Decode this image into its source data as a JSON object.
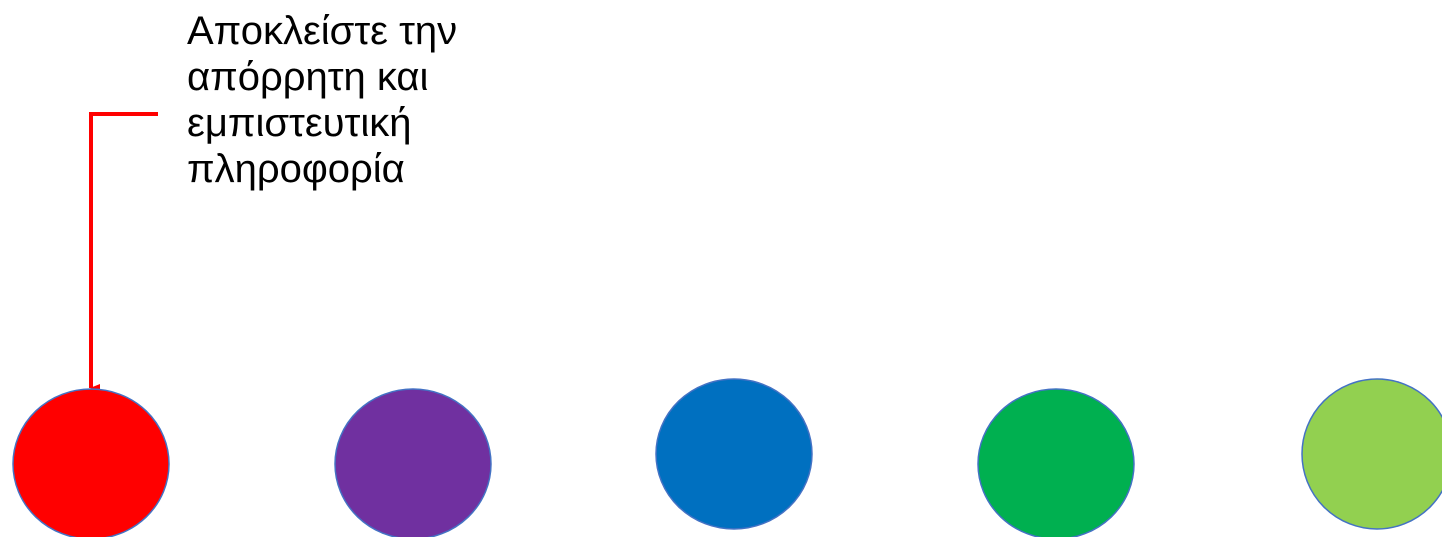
{
  "callout": {
    "lines": [
      "Αποκλείστε την",
      "απόρρητη και",
      "εμπιστευτική",
      "πληροφορία"
    ],
    "connector_color": "#ff0000"
  },
  "circles": [
    {
      "name": "red-circle",
      "fill": "#ff0000"
    },
    {
      "name": "purple-circle",
      "fill": "#7030a0"
    },
    {
      "name": "blue-circle",
      "fill": "#0070c0"
    },
    {
      "name": "green-circle",
      "fill": "#00b050"
    },
    {
      "name": "light-green-circle",
      "fill": "#92d050"
    }
  ],
  "circle_outline": "#4472c4"
}
